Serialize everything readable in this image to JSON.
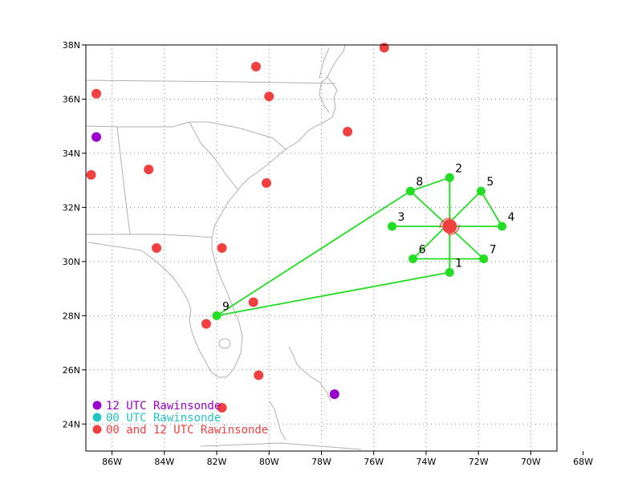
{
  "map": {
    "lon_range": [
      -87,
      -69
    ],
    "lat_range": [
      23,
      38
    ],
    "x_ticks": [
      {
        "value": -86,
        "label": "86W"
      },
      {
        "value": -84,
        "label": "84W"
      },
      {
        "value": -82,
        "label": "82W"
      },
      {
        "value": -80,
        "label": "80W"
      },
      {
        "value": -78,
        "label": "78W"
      },
      {
        "value": -76,
        "label": "76W"
      },
      {
        "value": -74,
        "label": "74W"
      },
      {
        "value": -72,
        "label": "72W"
      },
      {
        "value": -70,
        "label": "70W"
      },
      {
        "value": -68,
        "label": "68W"
      }
    ],
    "y_ticks": [
      {
        "value": 24,
        "label": "24N"
      },
      {
        "value": 26,
        "label": "26N"
      },
      {
        "value": 28,
        "label": "28N"
      },
      {
        "value": 30,
        "label": "30N"
      },
      {
        "value": 32,
        "label": "32N"
      },
      {
        "value": 34,
        "label": "34N"
      },
      {
        "value": 36,
        "label": "36N"
      },
      {
        "value": 38,
        "label": "38N"
      }
    ],
    "grid": true
  },
  "colors": {
    "red": "#f24040",
    "purple": "#9900cc",
    "cyan": "#22c4c4",
    "green": "#22dd22",
    "coast": "#b0b0b0"
  },
  "rawinsondes_red": [
    {
      "lon": -75.6,
      "lat": 37.9
    },
    {
      "lon": -80.5,
      "lat": 37.2
    },
    {
      "lon": -86.6,
      "lat": 36.2
    },
    {
      "lon": -80.0,
      "lat": 36.1
    },
    {
      "lon": -77.0,
      "lat": 34.8
    },
    {
      "lon": -84.6,
      "lat": 33.4
    },
    {
      "lon": -86.8,
      "lat": 33.2
    },
    {
      "lon": -80.1,
      "lat": 32.9
    },
    {
      "lon": -84.3,
      "lat": 30.5
    },
    {
      "lon": -81.8,
      "lat": 30.5
    },
    {
      "lon": -80.6,
      "lat": 28.5
    },
    {
      "lon": -82.4,
      "lat": 27.7
    },
    {
      "lon": -80.4,
      "lat": 25.8
    },
    {
      "lon": -81.8,
      "lat": 24.6
    }
  ],
  "rawinsondes_purple": [
    {
      "lon": -86.6,
      "lat": 34.6
    },
    {
      "lon": -77.5,
      "lat": 25.1
    }
  ],
  "storm": {
    "lon": -73.1,
    "lat": 31.3
  },
  "drop_points": [
    {
      "id": "1",
      "label": "1",
      "lon": -73.1,
      "lat": 29.6
    },
    {
      "id": "2",
      "label": "2",
      "lon": -73.1,
      "lat": 33.1
    },
    {
      "id": "3",
      "label": "3",
      "lon": -75.3,
      "lat": 31.3
    },
    {
      "id": "4",
      "label": "4",
      "lon": -71.1,
      "lat": 31.3
    },
    {
      "id": "5",
      "label": "5",
      "lon": -71.9,
      "lat": 32.6
    },
    {
      "id": "6",
      "label": "6",
      "lon": -74.5,
      "lat": 30.1
    },
    {
      "id": "7",
      "label": "7",
      "lon": -71.8,
      "lat": 30.1
    },
    {
      "id": "8",
      "label": "8",
      "lon": -74.6,
      "lat": 32.6
    },
    {
      "id": "9",
      "label": "9",
      "lon": -82.0,
      "lat": 28.0
    }
  ],
  "flight_track": [
    "9",
    "8",
    "2",
    "1",
    "9"
  ],
  "spokes": [
    [
      "3",
      "4"
    ],
    [
      "2",
      "1"
    ],
    [
      "8",
      "7"
    ],
    [
      "6",
      "5"
    ],
    [
      "6",
      "7"
    ],
    [
      "5",
      "4"
    ]
  ],
  "legend": [
    {
      "text": "12 UTC Rawinsonde",
      "color": "#9900cc"
    },
    {
      "text": "00 UTC Rawinsonde",
      "color": "#22c4c4"
    },
    {
      "text": "00 and 12 UTC Rawinsonde",
      "color": "#f24040"
    }
  ]
}
